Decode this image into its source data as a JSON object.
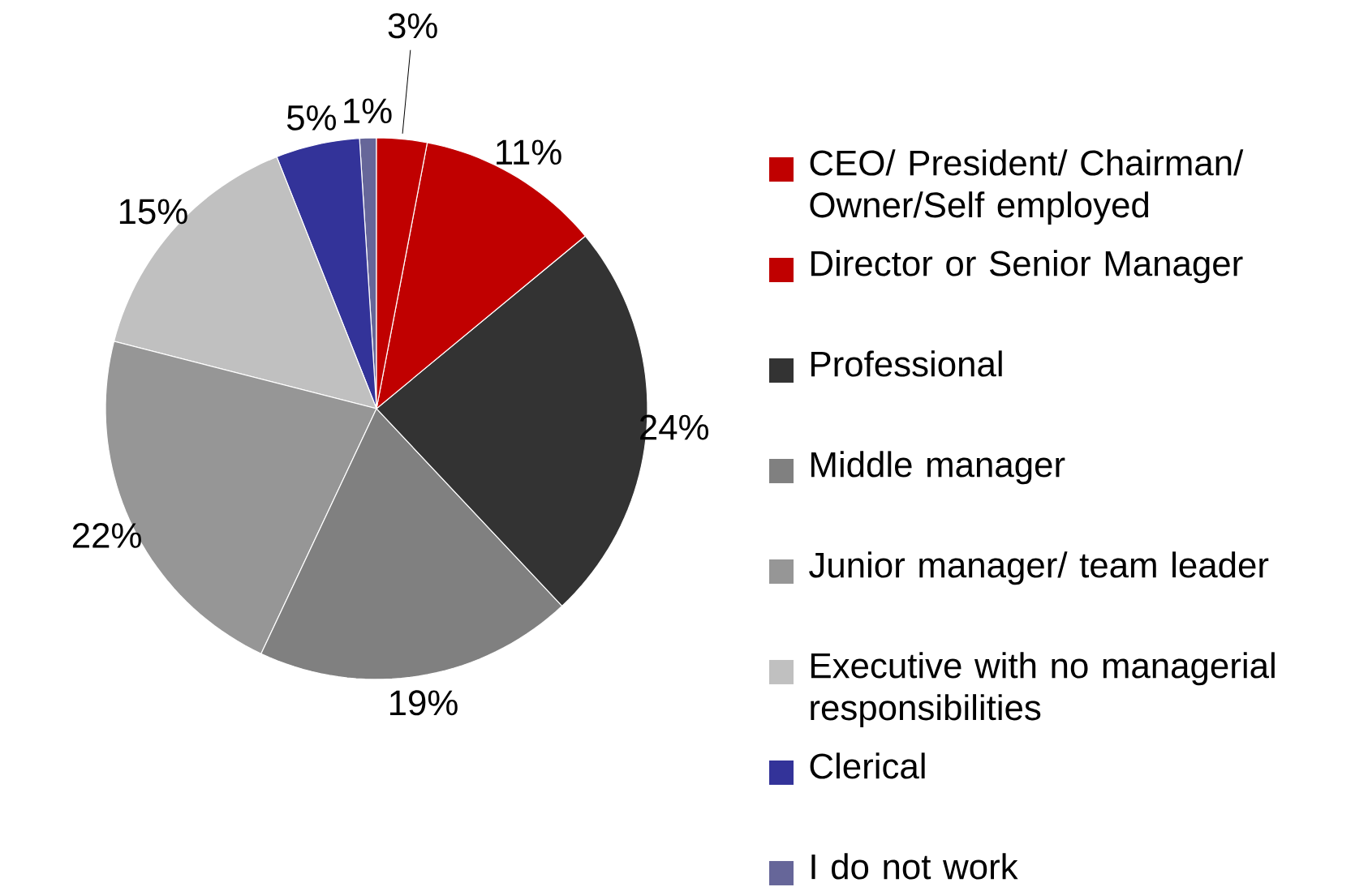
{
  "chart_data": {
    "type": "pie",
    "categories": [
      "CEO/ President/ Chairman/ Owner/Self employed",
      "Director or Senior Manager",
      "Professional",
      "Middle manager",
      "Junior manager/ team leader",
      "Executive with no managerial responsibilities",
      "Clerical",
      "I do not work"
    ],
    "values": [
      3,
      11,
      24,
      19,
      22,
      15,
      5,
      1
    ],
    "value_labels": [
      "3%",
      "11%",
      "24%",
      "19%",
      "22%",
      "15%",
      "5%",
      "1%"
    ],
    "colors": [
      "#c00000",
      "#c00000",
      "#333333",
      "#808080",
      "#969696",
      "#c0c0c0",
      "#333399",
      "#666699"
    ],
    "legend": "right"
  }
}
